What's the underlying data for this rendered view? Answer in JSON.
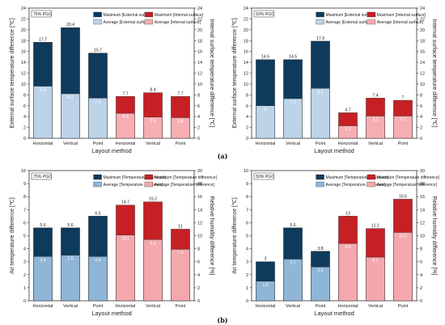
{
  "captions": {
    "a": "(a)",
    "b": "(b)"
  },
  "colors": {
    "max_external": "#0e3a5c",
    "avg_external": "#bcd3e8",
    "max_internal": "#c62024",
    "avg_internal": "#f7aeb3",
    "avg_temp_b": "#8fb5d7",
    "avg_rh_b": "#f4a8ad"
  },
  "chart_data": [
    {
      "type": "bar",
      "tag": "75% PGC",
      "categories": [
        "Horizontal",
        "Vertical",
        "Point",
        "Horizontal",
        "Vertical",
        "Point"
      ],
      "xlabel": "Layout method",
      "ylabel": "External surface temperature difference [℃]",
      "ylabel_right": "Internal surface temperature difference [℃]",
      "ylim": [
        0,
        24
      ],
      "yticks": [
        0,
        2,
        4,
        6,
        8,
        10,
        12,
        14,
        16,
        18,
        20,
        22,
        24
      ],
      "series": [
        {
          "name": "Maximum [External surface]",
          "values": [
            17.7,
            20.4,
            15.7,
            null,
            null,
            null
          ]
        },
        {
          "name": "Average [External surface]",
          "values": [
            9.6,
            8.2,
            7.4,
            null,
            null,
            null
          ]
        },
        {
          "name": "Maximum [Internal surface]",
          "values": [
            null,
            null,
            null,
            7.7,
            8.4,
            7.7
          ]
        },
        {
          "name": "Average [Internal surface]",
          "values": [
            null,
            null,
            null,
            4.6,
            3.9,
            3.8
          ]
        }
      ]
    },
    {
      "type": "bar",
      "tag": "50% PGC",
      "categories": [
        "Horizontal",
        "Vertical",
        "Point",
        "Horizontal",
        "Vertical",
        "Point"
      ],
      "xlabel": "Layout method",
      "ylabel": "External surface temperature difference [℃]",
      "ylabel_right": "Internal surface temperature difference [℃]",
      "ylim": [
        0,
        24
      ],
      "yticks": [
        0,
        2,
        4,
        6,
        8,
        10,
        12,
        14,
        16,
        18,
        20,
        22,
        24
      ],
      "series": [
        {
          "name": "Maximum [External surface]",
          "values": [
            14.5,
            14.5,
            17.9,
            null,
            null,
            null
          ]
        },
        {
          "name": "Average [External surface]",
          "values": [
            6,
            7.3,
            9.2,
            null,
            null,
            null
          ]
        },
        {
          "name": "Maximum [Internal surface]",
          "values": [
            null,
            null,
            null,
            4.7,
            7.4,
            7
          ]
        },
        {
          "name": "Average [Internal surface]",
          "values": [
            null,
            null,
            null,
            2.3,
            4.1,
            4.1
          ]
        }
      ]
    },
    {
      "type": "bar",
      "tag": "75% PGC",
      "categories": [
        "Horizontal",
        "Vertical",
        "Point",
        "Horizontal",
        "Vertical",
        "Point"
      ],
      "xlabel": "Layout method",
      "ylabel": "Air temperature difference [℃]",
      "ylabel_right": "Relative humidity difference [%]",
      "ylim": [
        0,
        10
      ],
      "yticks": [
        0,
        1,
        2,
        3,
        4,
        5,
        6,
        7,
        8,
        9,
        10
      ],
      "ylim_right": [
        0,
        20
      ],
      "yticks_right": [
        0,
        2,
        4,
        6,
        8,
        10,
        12,
        14,
        16,
        18,
        20
      ],
      "series": [
        {
          "name": "Maximum [Temperature difference]",
          "values": [
            5.6,
            5.6,
            6.5,
            null,
            null,
            null
          ]
        },
        {
          "name": "Average [Temperature difference]",
          "values": [
            3.4,
            3.5,
            3.4,
            null,
            null,
            null
          ]
        },
        {
          "name": "Maximum [Temperature difference]",
          "values": [
            null,
            null,
            null,
            14.7,
            15.2,
            11
          ],
          "axis": "right"
        },
        {
          "name": "Average [Temperature difference]",
          "values": [
            null,
            null,
            null,
            10.1,
            9.4,
            7.9
          ],
          "axis": "right"
        }
      ]
    },
    {
      "type": "bar",
      "tag": "50% PGC",
      "categories": [
        "Horizontal",
        "Vertical",
        "Point",
        "Horizontal",
        "Vertical",
        "Point"
      ],
      "xlabel": "Layout method",
      "ylabel": "Air temperature difference [℃]",
      "ylabel_right": "Relative humidity difference [%]",
      "ylim": [
        0,
        10
      ],
      "yticks": [
        0,
        1,
        2,
        3,
        4,
        5,
        6,
        7,
        8,
        9,
        10
      ],
      "ylim_right": [
        0,
        20
      ],
      "yticks_right": [
        0,
        2,
        4,
        6,
        8,
        10,
        12,
        14,
        16,
        18,
        20
      ],
      "series": [
        {
          "name": "Maximum [Temperature difference]",
          "values": [
            3,
            5.6,
            3.8,
            null,
            null,
            null
          ]
        },
        {
          "name": "Average [Temperature difference]",
          "values": [
            1.5,
            3.2,
            2.6,
            null,
            null,
            null
          ]
        },
        {
          "name": "Maximum [Temperature difference]",
          "values": [
            null,
            null,
            null,
            13,
            11.1,
            15.6
          ],
          "axis": "right"
        },
        {
          "name": "Average [Temperature difference]",
          "values": [
            null,
            null,
            null,
            8.8,
            6.7,
            10.5
          ],
          "axis": "right"
        }
      ]
    }
  ]
}
